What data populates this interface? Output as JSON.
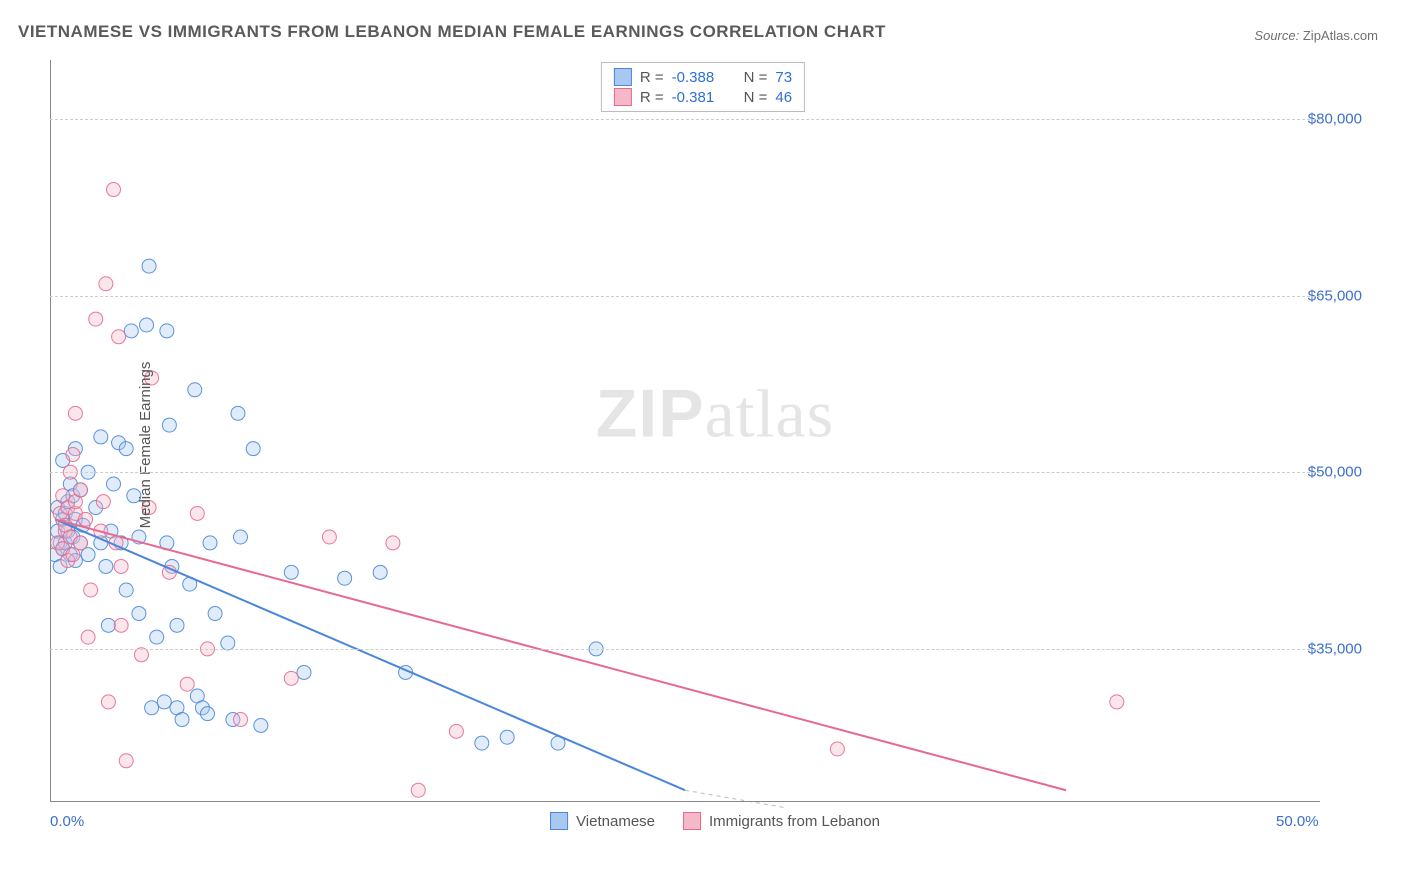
{
  "title": "VIETNAMESE VS IMMIGRANTS FROM LEBANON MEDIAN FEMALE EARNINGS CORRELATION CHART",
  "source": {
    "label": "Source:",
    "name": "ZipAtlas.com"
  },
  "watermark": {
    "part1": "ZIP",
    "part2": "atlas"
  },
  "chart": {
    "type": "scatter",
    "ylabel": "Median Female Earnings",
    "xlim": [
      0,
      50
    ],
    "ylim": [
      22000,
      85000
    ],
    "x_ticks": [
      {
        "value": 0,
        "label": "0.0%"
      },
      {
        "value": 50,
        "label": "50.0%"
      }
    ],
    "y_ticks": [
      {
        "value": 35000,
        "label": "$35,000"
      },
      {
        "value": 50000,
        "label": "$50,000"
      },
      {
        "value": 65000,
        "label": "$65,000"
      },
      {
        "value": 80000,
        "label": "$80,000"
      }
    ],
    "grid_color": "#cccccc",
    "axis_color": "#888888",
    "background_color": "#ffffff",
    "tick_font_color": "#3b6fc9",
    "label_font_color": "#555555",
    "title_font_color": "#5a5a5a",
    "title_fontsize": 17,
    "tick_fontsize": 15,
    "marker_radius": 7,
    "marker_fill_opacity": 0.35,
    "marker_stroke_opacity": 0.9,
    "line_width": 2,
    "series": [
      {
        "id": "vietnamese",
        "label": "Vietnamese",
        "fill": "#a8c8f0",
        "stroke": "#4a87d8",
        "R": "-0.388",
        "N": "73",
        "trend": {
          "x1": 0.2,
          "y1": 46000,
          "x2": 25,
          "y2": 23000
        },
        "points": [
          [
            0.2,
            43000
          ],
          [
            0.3,
            45000
          ],
          [
            0.3,
            47000
          ],
          [
            0.4,
            42000
          ],
          [
            0.4,
            44000
          ],
          [
            0.5,
            43500
          ],
          [
            0.5,
            46000
          ],
          [
            0.5,
            51000
          ],
          [
            0.6,
            44000
          ],
          [
            0.6,
            46500
          ],
          [
            0.7,
            45000
          ],
          [
            0.7,
            47500
          ],
          [
            0.8,
            43000
          ],
          [
            0.8,
            49000
          ],
          [
            0.9,
            44500
          ],
          [
            0.9,
            48000
          ],
          [
            1.0,
            42500
          ],
          [
            1.0,
            46000
          ],
          [
            1.0,
            52000
          ],
          [
            1.2,
            44000
          ],
          [
            1.2,
            48500
          ],
          [
            1.3,
            45500
          ],
          [
            1.5,
            43000
          ],
          [
            1.5,
            50000
          ],
          [
            1.8,
            47000
          ],
          [
            2.0,
            44000
          ],
          [
            2.0,
            53000
          ],
          [
            2.2,
            42000
          ],
          [
            2.3,
            37000
          ],
          [
            2.4,
            45000
          ],
          [
            2.5,
            49000
          ],
          [
            2.7,
            52500
          ],
          [
            2.8,
            44000
          ],
          [
            3.0,
            40000
          ],
          [
            3.0,
            52000
          ],
          [
            3.2,
            62000
          ],
          [
            3.3,
            48000
          ],
          [
            3.5,
            38000
          ],
          [
            3.5,
            44500
          ],
          [
            3.8,
            62500
          ],
          [
            3.9,
            67500
          ],
          [
            4.0,
            30000
          ],
          [
            4.2,
            36000
          ],
          [
            4.5,
            30500
          ],
          [
            4.6,
            44000
          ],
          [
            4.6,
            62000
          ],
          [
            4.7,
            54000
          ],
          [
            4.8,
            42000
          ],
          [
            5.0,
            30000
          ],
          [
            5.0,
            37000
          ],
          [
            5.2,
            29000
          ],
          [
            5.5,
            40500
          ],
          [
            5.7,
            57000
          ],
          [
            5.8,
            31000
          ],
          [
            6.0,
            30000
          ],
          [
            6.2,
            29500
          ],
          [
            6.3,
            44000
          ],
          [
            6.5,
            38000
          ],
          [
            7.0,
            35500
          ],
          [
            7.2,
            29000
          ],
          [
            7.4,
            55000
          ],
          [
            7.5,
            44500
          ],
          [
            8.0,
            52000
          ],
          [
            8.3,
            28500
          ],
          [
            9.5,
            41500
          ],
          [
            10.0,
            33000
          ],
          [
            11.6,
            41000
          ],
          [
            13.0,
            41500
          ],
          [
            14.0,
            33000
          ],
          [
            17.0,
            27000
          ],
          [
            18.0,
            27500
          ],
          [
            20.0,
            27000
          ],
          [
            21.5,
            35000
          ]
        ]
      },
      {
        "id": "lebanon",
        "label": "Immigrants from Lebanon",
        "fill": "#f4b8c8",
        "stroke": "#e66a8f",
        "R": "-0.381",
        "N": "46",
        "trend": {
          "x1": 0.2,
          "y1": 46000,
          "x2": 40,
          "y2": 23000
        },
        "points": [
          [
            0.3,
            44000
          ],
          [
            0.4,
            46500
          ],
          [
            0.5,
            43500
          ],
          [
            0.5,
            48000
          ],
          [
            0.6,
            45000
          ],
          [
            0.6,
            45500
          ],
          [
            0.7,
            42500
          ],
          [
            0.7,
            47000
          ],
          [
            0.8,
            44500
          ],
          [
            0.8,
            50000
          ],
          [
            0.9,
            43000
          ],
          [
            0.9,
            51500
          ],
          [
            1.0,
            46500
          ],
          [
            1.0,
            47500
          ],
          [
            1.0,
            55000
          ],
          [
            1.2,
            44000
          ],
          [
            1.2,
            48500
          ],
          [
            1.4,
            46000
          ],
          [
            1.5,
            36000
          ],
          [
            1.6,
            40000
          ],
          [
            1.8,
            63000
          ],
          [
            2.0,
            45000
          ],
          [
            2.1,
            47500
          ],
          [
            2.2,
            66000
          ],
          [
            2.3,
            30500
          ],
          [
            2.5,
            74000
          ],
          [
            2.6,
            44000
          ],
          [
            2.7,
            61500
          ],
          [
            2.8,
            37000
          ],
          [
            2.8,
            42000
          ],
          [
            3.0,
            25500
          ],
          [
            3.6,
            34500
          ],
          [
            3.9,
            47000
          ],
          [
            4.0,
            58000
          ],
          [
            4.7,
            41500
          ],
          [
            5.4,
            32000
          ],
          [
            5.8,
            46500
          ],
          [
            6.2,
            35000
          ],
          [
            7.5,
            29000
          ],
          [
            9.5,
            32500
          ],
          [
            11.0,
            44500
          ],
          [
            13.5,
            44000
          ],
          [
            14.5,
            23000
          ],
          [
            16.0,
            28000
          ],
          [
            31.0,
            26500
          ],
          [
            42.0,
            30500
          ]
        ]
      }
    ]
  }
}
